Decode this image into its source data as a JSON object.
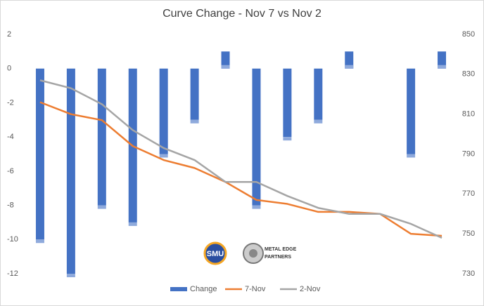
{
  "chart_data": {
    "type": "bar-line",
    "title": "Curve Change - Nov 7 vs Nov 2",
    "series": [
      {
        "name": "Change",
        "type": "bar",
        "axis": "y",
        "color": "#4472c4",
        "values": [
          -10,
          -12,
          -8,
          -9,
          -5,
          -3,
          1,
          -8,
          -4,
          -3,
          1,
          0,
          -5,
          1
        ]
      },
      {
        "name": "7-Nov",
        "type": "line",
        "axis": "y2",
        "color": "#ed7d31",
        "values": [
          816,
          810,
          807,
          794,
          787,
          783,
          776,
          767,
          765,
          761,
          761,
          760,
          750,
          749
        ]
      },
      {
        "name": "2-Nov",
        "type": "line",
        "axis": "y2",
        "color": "#a5a5a5",
        "values": [
          827,
          823,
          815,
          802,
          793,
          787,
          776,
          776,
          769,
          763,
          760,
          760,
          755,
          748
        ]
      }
    ],
    "ylim": [
      -12,
      2
    ],
    "yticks": [
      2,
      0,
      -2,
      -4,
      -6,
      -8,
      -10,
      -12
    ],
    "y2lim": [
      730,
      850
    ],
    "y2ticks": [
      850,
      830,
      810,
      790,
      770,
      750,
      730
    ],
    "legend": "bottom",
    "logos": [
      "SMU",
      "METAL EDGE",
      "PARTNERS"
    ]
  }
}
